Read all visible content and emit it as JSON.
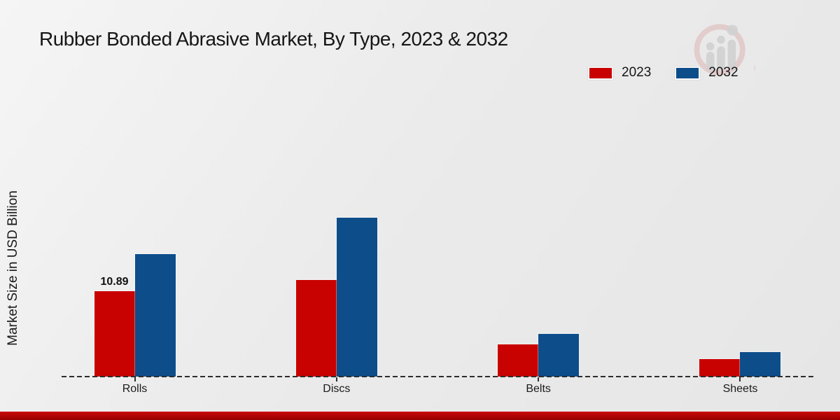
{
  "title": "Rubber Bonded Abrasive Market, By Type, 2023 & 2032",
  "chart_data": {
    "type": "bar",
    "title": "Rubber Bonded Abrasive Market, By Type, 2023 & 2032",
    "xlabel": "",
    "ylabel": "Market Size in USD Billion",
    "categories": [
      "Rolls",
      "Discs",
      "Belts",
      "Sheets"
    ],
    "series": [
      {
        "name": "2023",
        "color": "#c80101",
        "values": [
          10.89,
          12.32,
          4.11,
          2.23
        ]
      },
      {
        "name": "2032",
        "color": "#0d4d8a",
        "values": [
          15.62,
          20.26,
          5.45,
          3.12
        ]
      }
    ],
    "data_labels": [
      {
        "series": "2023",
        "category": "Rolls",
        "text": "10.89"
      }
    ],
    "ylim": [
      0,
      24
    ],
    "grid": false,
    "legend_position": "top-right",
    "baseline_style": "dashed-zero-line"
  },
  "colors": {
    "series_2023": "#c80101",
    "series_2032": "#0d4d8a",
    "bottom_accent": "#ae0404",
    "background": "#ebebeb",
    "text": "#1a1a1a"
  },
  "watermark": {
    "name": "magnifier-bar-chart-logo"
  }
}
